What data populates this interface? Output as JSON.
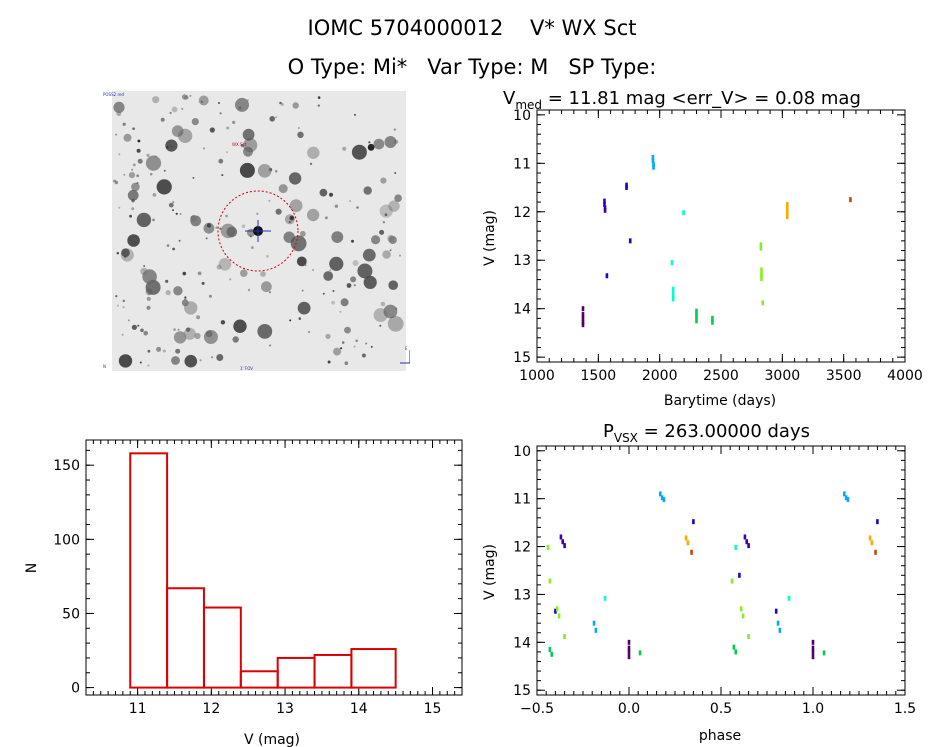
{
  "header": {
    "title_line1": "IOMC 5704000012    V* WX Sct",
    "title_line2": "O Type: Mi*   Var Type: M   SP Type:"
  },
  "finder": {
    "label_top_left": "POSS2 red",
    "label_target": "WX Sct",
    "label_bottom_center": "1' FOV",
    "label_bottom_left": "N",
    "label_bottom_right": "E",
    "marker_color": "#cc0000"
  },
  "chart_data": [
    {
      "id": "light_curve",
      "type": "scatter",
      "title_main": "V",
      "title_sub": "med",
      "title_rest": " = 11.81 mag <err_V> = 0.08 mag",
      "xlabel": "Barytime (days)",
      "ylabel": "V (mag)",
      "xlim": [
        1000,
        4000
      ],
      "ylim": [
        15.1,
        9.9
      ],
      "x_ticks": [
        1000,
        1500,
        2000,
        2500,
        3000,
        3500,
        4000
      ],
      "y_ticks": [
        10,
        11,
        12,
        13,
        14,
        15
      ],
      "series": [
        {
          "color": "#550066",
          "points": [
            [
              1375,
              14.0
            ],
            [
              1375,
              14.12
            ],
            [
              1375,
              14.2
            ],
            [
              1375,
              14.28
            ],
            [
              1375,
              14.33
            ]
          ]
        },
        {
          "color": "#3a00aa",
          "points": [
            [
              1550,
              11.78
            ],
            [
              1550,
              11.85
            ],
            [
              1555,
              11.92
            ],
            [
              1555,
              11.97
            ]
          ]
        },
        {
          "color": "#2200cc",
          "points": [
            [
              1570,
              13.32
            ],
            [
              1730,
              11.45
            ],
            [
              1730,
              11.5
            ],
            [
              1760,
              12.6
            ]
          ]
        },
        {
          "color": "#00aaff",
          "points": [
            [
              1945,
              10.88
            ],
            [
              1945,
              10.95
            ],
            [
              1950,
              11.02
            ],
            [
              1950,
              11.08
            ]
          ]
        },
        {
          "color": "#00ffcc",
          "points": [
            [
              2100,
              13.05
            ],
            [
              2110,
              13.6
            ],
            [
              2110,
              13.7
            ],
            [
              2110,
              13.8
            ],
            [
              2195,
              12.02
            ]
          ]
        },
        {
          "color": "#00cc55",
          "points": [
            [
              2300,
              14.05
            ],
            [
              2300,
              14.15
            ],
            [
              2300,
              14.25
            ],
            [
              2430,
              14.2
            ],
            [
              2430,
              14.28
            ]
          ]
        },
        {
          "color": "#88ee22",
          "points": [
            [
              2825,
              12.68
            ],
            [
              2825,
              12.75
            ],
            [
              2830,
              13.2
            ],
            [
              2830,
              13.3
            ],
            [
              2830,
              13.38
            ],
            [
              2840,
              13.88
            ]
          ]
        },
        {
          "color": "#ffaa00",
          "points": [
            [
              3040,
              11.85
            ],
            [
              3040,
              11.92
            ],
            [
              3040,
              12.0
            ],
            [
              3040,
              12.1
            ]
          ]
        },
        {
          "color": "#cc4400",
          "points": [
            [
              3555,
              11.75
            ]
          ]
        }
      ]
    },
    {
      "id": "histogram",
      "type": "bar",
      "xlabel": "V (mag)",
      "ylabel": "N",
      "xlim": [
        10.3,
        15.4
      ],
      "ylim": [
        -5,
        167
      ],
      "x_ticks": [
        11,
        12,
        13,
        14,
        15
      ],
      "y_ticks": [
        0,
        50,
        100,
        150
      ],
      "bins": [
        {
          "from": 10.9,
          "to": 11.4,
          "value": 158
        },
        {
          "from": 11.4,
          "to": 11.9,
          "value": 67
        },
        {
          "from": 11.9,
          "to": 12.4,
          "value": 54
        },
        {
          "from": 12.4,
          "to": 12.9,
          "value": 11
        },
        {
          "from": 12.9,
          "to": 13.4,
          "value": 20
        },
        {
          "from": 13.4,
          "to": 13.9,
          "value": 22
        },
        {
          "from": 13.9,
          "to": 14.5,
          "value": 26
        }
      ],
      "bar_color": "#dd0000"
    },
    {
      "id": "phase_curve",
      "type": "scatter",
      "title_main": "P",
      "title_sub": "VSX",
      "title_rest": " = 263.00000 days",
      "xlabel": "phase",
      "ylabel": "V (mag)",
      "xlim": [
        -0.5,
        1.5
      ],
      "ylim": [
        15.1,
        9.9
      ],
      "x_ticks": [
        -0.5,
        0.0,
        0.5,
        1.0,
        1.5
      ],
      "x_tick_labels": [
        "−0.5",
        "0.0",
        "0.5",
        "1.0",
        "1.5"
      ],
      "y_ticks": [
        10,
        11,
        12,
        13,
        14,
        15
      ],
      "series": [
        {
          "color": "#550066",
          "points": [
            [
              0.0,
              14.0
            ],
            [
              0.0,
              14.12
            ],
            [
              0.0,
              14.2
            ],
            [
              0.0,
              14.3
            ],
            [
              1.0,
              14.0
            ],
            [
              1.0,
              14.12
            ],
            [
              1.0,
              14.2
            ],
            [
              1.0,
              14.3
            ]
          ]
        },
        {
          "color": "#3a00aa",
          "points": [
            [
              -0.37,
              11.8
            ],
            [
              -0.36,
              11.9
            ],
            [
              -0.35,
              11.98
            ],
            [
              0.63,
              11.8
            ],
            [
              0.64,
              11.9
            ],
            [
              0.65,
              11.98
            ]
          ]
        },
        {
          "color": "#2200cc",
          "points": [
            [
              0.35,
              11.48
            ],
            [
              1.35,
              11.48
            ],
            [
              -0.4,
              13.35
            ],
            [
              0.6,
              12.6
            ],
            [
              0.8,
              13.35
            ]
          ]
        },
        {
          "color": "#00aaff",
          "points": [
            [
              0.17,
              10.9
            ],
            [
              0.18,
              10.98
            ],
            [
              0.19,
              11.02
            ],
            [
              1.17,
              10.9
            ],
            [
              1.18,
              10.98
            ],
            [
              1.19,
              11.02
            ],
            [
              -0.19,
              13.6
            ],
            [
              -0.18,
              13.75
            ],
            [
              0.81,
              13.6
            ],
            [
              0.82,
              13.75
            ]
          ]
        },
        {
          "color": "#00ffcc",
          "points": [
            [
              -0.13,
              13.08
            ],
            [
              0.87,
              13.08
            ],
            [
              0.58,
              12.02
            ]
          ]
        },
        {
          "color": "#00cc55",
          "points": [
            [
              -0.43,
              14.15
            ],
            [
              -0.42,
              14.25
            ],
            [
              0.57,
              14.1
            ],
            [
              0.58,
              14.2
            ],
            [
              0.06,
              14.22
            ],
            [
              1.06,
              14.22
            ]
          ]
        },
        {
          "color": "#88ee22",
          "points": [
            [
              -0.44,
              12.02
            ],
            [
              -0.43,
              12.72
            ],
            [
              -0.39,
              13.3
            ],
            [
              -0.38,
              13.45
            ],
            [
              -0.35,
              13.88
            ],
            [
              0.56,
              12.72
            ],
            [
              0.61,
              13.3
            ],
            [
              0.62,
              13.45
            ],
            [
              0.65,
              13.88
            ]
          ]
        },
        {
          "color": "#ffaa00",
          "points": [
            [
              0.31,
              11.82
            ],
            [
              0.32,
              11.92
            ],
            [
              1.31,
              11.82
            ],
            [
              1.32,
              11.92
            ]
          ]
        },
        {
          "color": "#cc4400",
          "points": [
            [
              0.34,
              12.12
            ],
            [
              1.34,
              12.12
            ]
          ]
        }
      ]
    }
  ]
}
